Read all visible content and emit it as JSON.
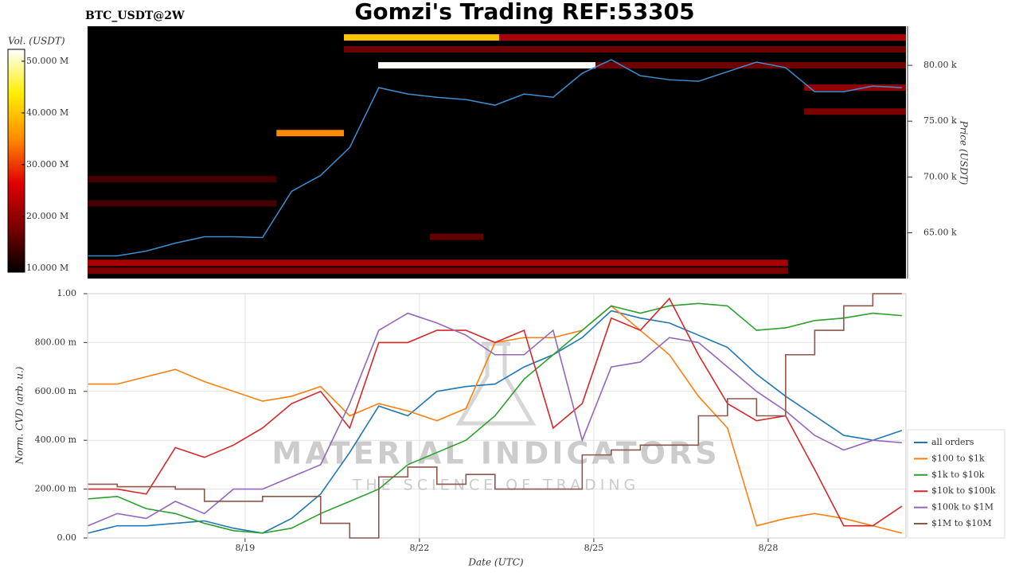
{
  "chart_data": [
    {
      "type": "heatmap",
      "title": "Gomzi's Trading REF:53305",
      "subtitle": "BTC_USDT@2W",
      "colorbar_label": "Vol. (USDT)",
      "colormap": [
        "#000000",
        "#7a0000",
        "#e00000",
        "#ff8c00",
        "#ffee00",
        "#ffffff"
      ],
      "clim": [
        9200000,
        52300000
      ],
      "cticks": [
        {
          "value": 10000000,
          "label": "10.000 M"
        },
        {
          "value": 20000000,
          "label": "20.000 M"
        },
        {
          "value": 30000000,
          "label": "30.000 M"
        },
        {
          "value": 40000000,
          "label": "40.000 M"
        },
        {
          "value": 50000000,
          "label": "50.000 M"
        }
      ],
      "ylabel": "Price (USDT)",
      "ylim": [
        60900,
        83500
      ],
      "yticks": [
        {
          "value": 65000,
          "label": "65.00 k"
        },
        {
          "value": 70000,
          "label": "70.00 k"
        },
        {
          "value": 75000,
          "label": "75.00 k"
        },
        {
          "value": 80000,
          "label": "80.00 k"
        }
      ],
      "xlim": [
        16.29,
        30.37
      ],
      "bands": [
        {
          "price": 82500,
          "x0": 23.37,
          "x1": 30.37,
          "value": 22000000
        },
        {
          "price": 82500,
          "x0": 20.7,
          "x1": 23.37,
          "value": 40000000
        },
        {
          "price": 81430,
          "x0": 20.7,
          "x1": 30.37,
          "value": 17000000
        },
        {
          "price": 80000,
          "x0": 21.29,
          "x1": 25.03,
          "value": 52000000
        },
        {
          "price": 80000,
          "x0": 25.03,
          "x1": 30.37,
          "value": 17000000
        },
        {
          "price": 78000,
          "x0": 28.62,
          "x1": 30.37,
          "value": 20000000
        },
        {
          "price": 75860,
          "x0": 28.62,
          "x1": 30.37,
          "value": 18000000
        },
        {
          "price": 73930,
          "x0": 19.54,
          "x1": 20.7,
          "value": 35000000
        },
        {
          "price": 69800,
          "x0": 16.29,
          "x1": 19.54,
          "value": 14000000
        },
        {
          "price": 67640,
          "x0": 16.29,
          "x1": 19.54,
          "value": 14000000
        },
        {
          "price": 64640,
          "x0": 22.18,
          "x1": 23.1,
          "value": 16000000
        },
        {
          "price": 62300,
          "x0": 16.29,
          "x1": 28.34,
          "value": 22000000
        },
        {
          "price": 61600,
          "x0": 16.29,
          "x1": 28.34,
          "value": 18000000
        }
      ],
      "price": {
        "color": "#3b8fd0",
        "x": [
          16.3,
          16.8,
          17.3,
          17.8,
          18.3,
          18.8,
          19.3,
          19.8,
          20.3,
          20.8,
          21.3,
          21.8,
          22.3,
          22.8,
          23.3,
          23.8,
          24.3,
          24.8,
          25.3,
          25.8,
          26.3,
          26.8,
          27.3,
          27.8,
          28.3,
          28.8,
          29.3,
          29.8,
          30.3
        ],
        "values": [
          62930,
          62930,
          63360,
          64070,
          64640,
          64640,
          64570,
          68710,
          70140,
          72640,
          78000,
          77430,
          77140,
          76930,
          76430,
          77430,
          77140,
          79290,
          80500,
          79070,
          78710,
          78570,
          79430,
          80290,
          79790,
          77640,
          77640,
          78140,
          78000
        ]
      }
    },
    {
      "type": "line",
      "xlabel": "Date (UTC)",
      "ylabel": "Norm. CVD (arb. u.)",
      "xlim": [
        16.29,
        30.37
      ],
      "xticks": [
        {
          "value": 19,
          "label": "8/19"
        },
        {
          "value": 22,
          "label": "8/22"
        },
        {
          "value": 25,
          "label": "8/25"
        },
        {
          "value": 28,
          "label": "8/28"
        }
      ],
      "ylim": [
        0,
        1
      ],
      "yticks": [
        {
          "value": 0,
          "label": "0.00"
        },
        {
          "value": 0.2,
          "label": "200.00 m"
        },
        {
          "value": 0.4,
          "label": "400.00 m"
        },
        {
          "value": 0.6,
          "label": "600.00 m"
        },
        {
          "value": 0.8,
          "label": "800.00 m"
        },
        {
          "value": 1,
          "label": "1.00"
        }
      ],
      "grid": true,
      "legend": "right",
      "watermark": [
        "MATERIAL INDICATORS",
        "THE SCIENCE OF TRADING"
      ],
      "x": [
        16.3,
        16.8,
        17.3,
        17.8,
        18.3,
        18.8,
        19.3,
        19.8,
        20.3,
        20.8,
        21.3,
        21.8,
        22.3,
        22.8,
        23.3,
        23.8,
        24.3,
        24.8,
        25.3,
        25.8,
        26.3,
        26.8,
        27.3,
        27.8,
        28.3,
        28.8,
        29.3,
        29.8,
        30.3
      ],
      "series": [
        {
          "name": "all orders",
          "color": "#1f77b4",
          "values": [
            0.02,
            0.05,
            0.05,
            0.06,
            0.07,
            0.04,
            0.02,
            0.08,
            0.18,
            0.35,
            0.54,
            0.5,
            0.6,
            0.62,
            0.63,
            0.7,
            0.75,
            0.82,
            0.93,
            0.9,
            0.88,
            0.83,
            0.78,
            0.67,
            0.58,
            0.5,
            0.42,
            0.4,
            0.44
          ]
        },
        {
          "name": "$100 to $1k",
          "color": "#ff7f0e",
          "values": [
            0.63,
            0.63,
            0.66,
            0.69,
            0.64,
            0.6,
            0.56,
            0.58,
            0.62,
            0.5,
            0.55,
            0.52,
            0.48,
            0.53,
            0.8,
            0.82,
            0.82,
            0.85,
            0.95,
            0.85,
            0.75,
            0.58,
            0.45,
            0.05,
            0.08,
            0.1,
            0.08,
            0.05,
            0.02
          ]
        },
        {
          "name": "$1k to $10k",
          "color": "#2ca02c",
          "values": [
            0.16,
            0.17,
            0.12,
            0.1,
            0.06,
            0.03,
            0.02,
            0.04,
            0.1,
            0.15,
            0.2,
            0.3,
            0.35,
            0.4,
            0.5,
            0.65,
            0.75,
            0.85,
            0.95,
            0.92,
            0.95,
            0.96,
            0.95,
            0.85,
            0.86,
            0.89,
            0.9,
            0.92,
            0.91
          ]
        },
        {
          "name": "$10k to $100k",
          "color": "#d62728",
          "values": [
            0.2,
            0.2,
            0.18,
            0.37,
            0.33,
            0.38,
            0.45,
            0.55,
            0.6,
            0.45,
            0.8,
            0.8,
            0.85,
            0.85,
            0.8,
            0.85,
            0.45,
            0.55,
            0.9,
            0.85,
            0.98,
            0.75,
            0.55,
            0.48,
            0.5,
            0.28,
            0.05,
            0.05,
            0.13
          ]
        },
        {
          "name": "$100k to $1M",
          "color": "#9467bd",
          "values": [
            0.05,
            0.1,
            0.08,
            0.15,
            0.1,
            0.2,
            0.2,
            0.25,
            0.3,
            0.55,
            0.85,
            0.92,
            0.88,
            0.83,
            0.75,
            0.75,
            0.85,
            0.4,
            0.7,
            0.72,
            0.82,
            0.8,
            0.7,
            0.6,
            0.52,
            0.42,
            0.36,
            0.4,
            0.39
          ]
        },
        {
          "name": "$1M to $10M",
          "color": "#8c564b",
          "step": true,
          "values": [
            0.22,
            0.21,
            0.21,
            0.2,
            0.15,
            0.15,
            0.17,
            0.17,
            0.06,
            0,
            0.25,
            0.29,
            0.22,
            0.26,
            0.2,
            0.2,
            0.2,
            0.34,
            0.36,
            0.38,
            0.38,
            0.5,
            0.57,
            0.5,
            0.75,
            0.85,
            0.95,
            1,
            1
          ]
        }
      ]
    }
  ]
}
